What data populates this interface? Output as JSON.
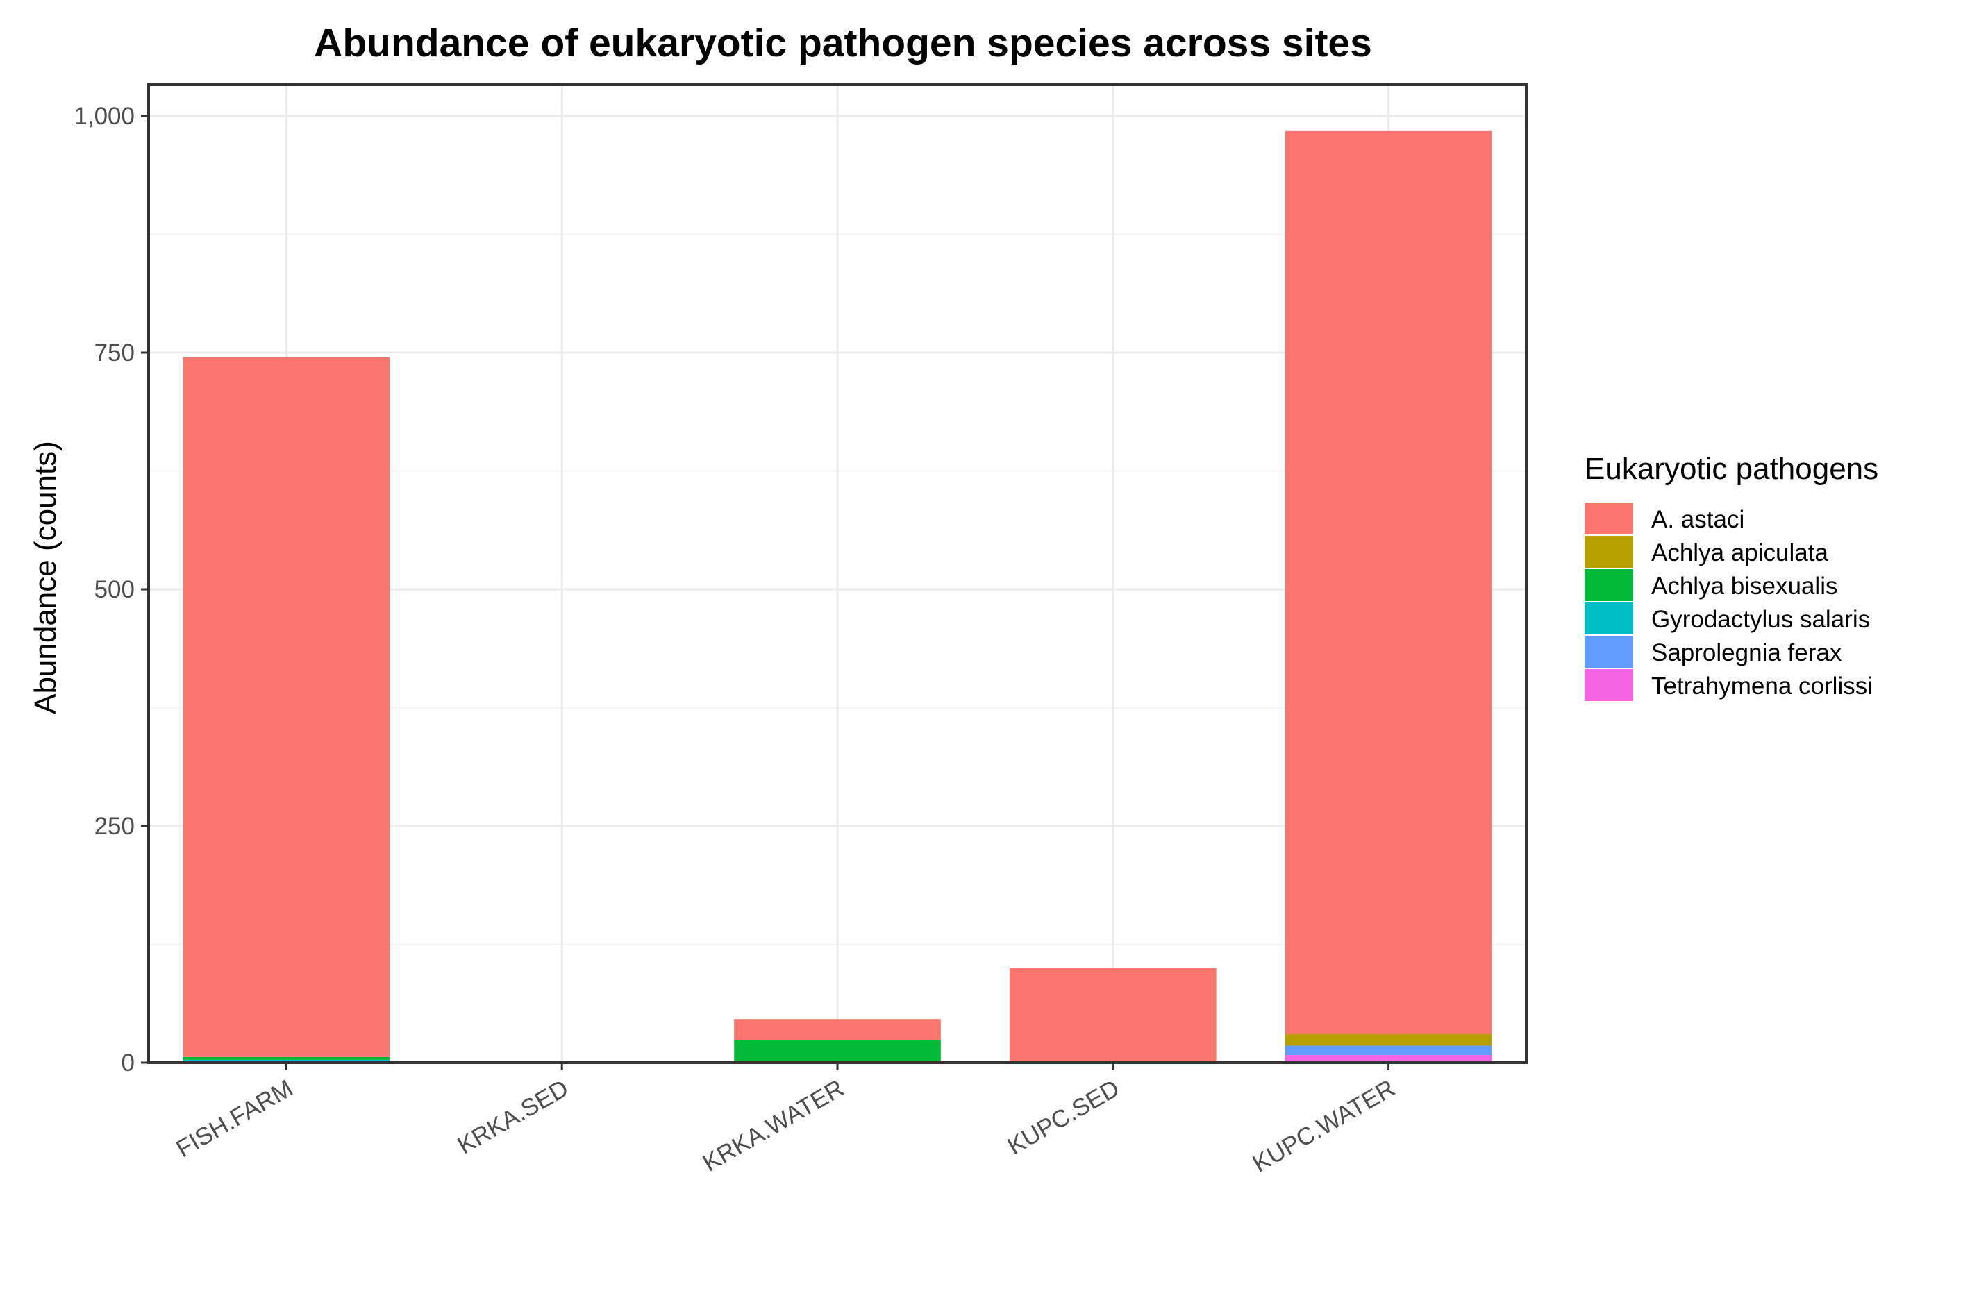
{
  "chart_data": {
    "type": "bar",
    "stacked": true,
    "title": "Abundance of eukaryotic pathogen species across sites",
    "xlabel": "",
    "ylabel": "Abundance (counts)",
    "ylim": [
      0,
      1033
    ],
    "yticks": [
      0,
      250,
      500,
      750,
      1000
    ],
    "ytick_labels": [
      "0",
      "250",
      "500",
      "750",
      "1,000"
    ],
    "grid": true,
    "legend_position": "right",
    "legend_title": "Eukaryotic pathogens",
    "categories": [
      "FISH.FARM",
      "KRKA.SED",
      "KRKA.WATER",
      "KUPC.SED",
      "KUPC.WATER"
    ],
    "series": [
      {
        "name": "Tetrahymena corlissi",
        "color": "#F564E3",
        "values": [
          0,
          0,
          0,
          0,
          8
        ]
      },
      {
        "name": "Saprolegnia ferax",
        "color": "#619CFF",
        "values": [
          0,
          0,
          0,
          0,
          10
        ]
      },
      {
        "name": "Gyrodactylus salaris",
        "color": "#00BFC4",
        "values": [
          3,
          0,
          0,
          0,
          0
        ]
      },
      {
        "name": "Achlya bisexualis",
        "color": "#00BA38",
        "values": [
          3,
          0,
          24,
          0,
          0
        ]
      },
      {
        "name": "Achlya apiculata",
        "color": "#B79F00",
        "values": [
          0,
          0,
          0,
          0,
          12
        ]
      },
      {
        "name": "A. astaci",
        "color": "#F8766D",
        "values": [
          739,
          0,
          22,
          100,
          954
        ]
      }
    ],
    "legend_order": [
      "A. astaci",
      "Achlya apiculata",
      "Achlya bisexualis",
      "Gyrodactylus salaris",
      "Saprolegnia ferax",
      "Tetrahymena corlissi"
    ]
  }
}
